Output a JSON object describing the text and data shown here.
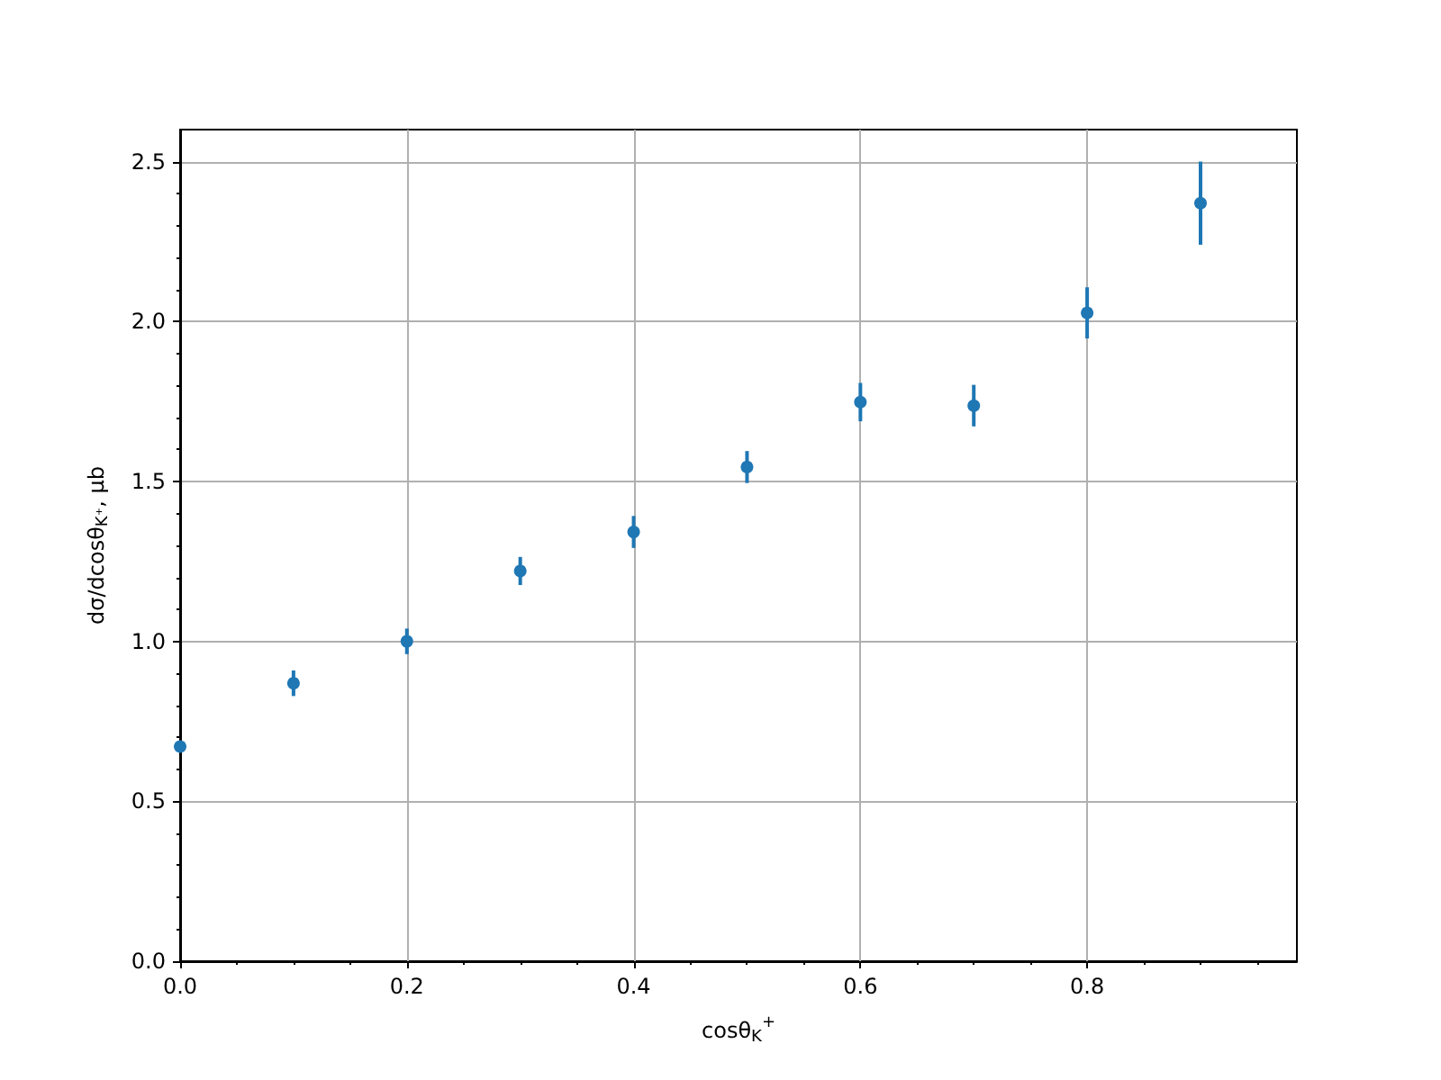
{
  "chart_data": {
    "type": "scatter",
    "xlabel": "cosθ$_{K}$$^{+}$",
    "ylabel": "dσ/dcosθ$_{K⁺}$, μb",
    "x": [
      0,
      0.1,
      0.2,
      0.3,
      0.4,
      0.5,
      0.6,
      0.7,
      0.8,
      0.9
    ],
    "series": [
      {
        "color": "#1f77b4",
        "values": [
          0.671,
          0.869,
          1.0,
          1.22,
          1.342,
          1.545,
          1.748,
          1.737,
          2.027,
          2.37
        ],
        "errors": [
          null,
          0.04,
          0.04,
          0.044,
          0.05,
          0.05,
          0.06,
          0.065,
          0.08,
          0.13
        ]
      }
    ],
    "xlim": [
      0,
      0.985
    ],
    "ylim": [
      0,
      2.6
    ],
    "xticks": [
      {
        "value": 0,
        "label": "0.0"
      },
      {
        "value": 0.2,
        "label": "0.2"
      },
      {
        "value": 0.4,
        "label": "0.4"
      },
      {
        "value": 0.6,
        "label": "0.6"
      },
      {
        "value": 0.8,
        "label": "0.8"
      }
    ],
    "yticks": [
      {
        "value": 0,
        "label": "0.0"
      },
      {
        "value": 0.5,
        "label": "0.5"
      },
      {
        "value": 1,
        "label": "1.0"
      },
      {
        "value": 1.5,
        "label": "1.5"
      },
      {
        "value": 2,
        "label": "2.0"
      },
      {
        "value": 2.5,
        "label": "2.5"
      }
    ],
    "grid": true,
    "marker": "circle"
  }
}
